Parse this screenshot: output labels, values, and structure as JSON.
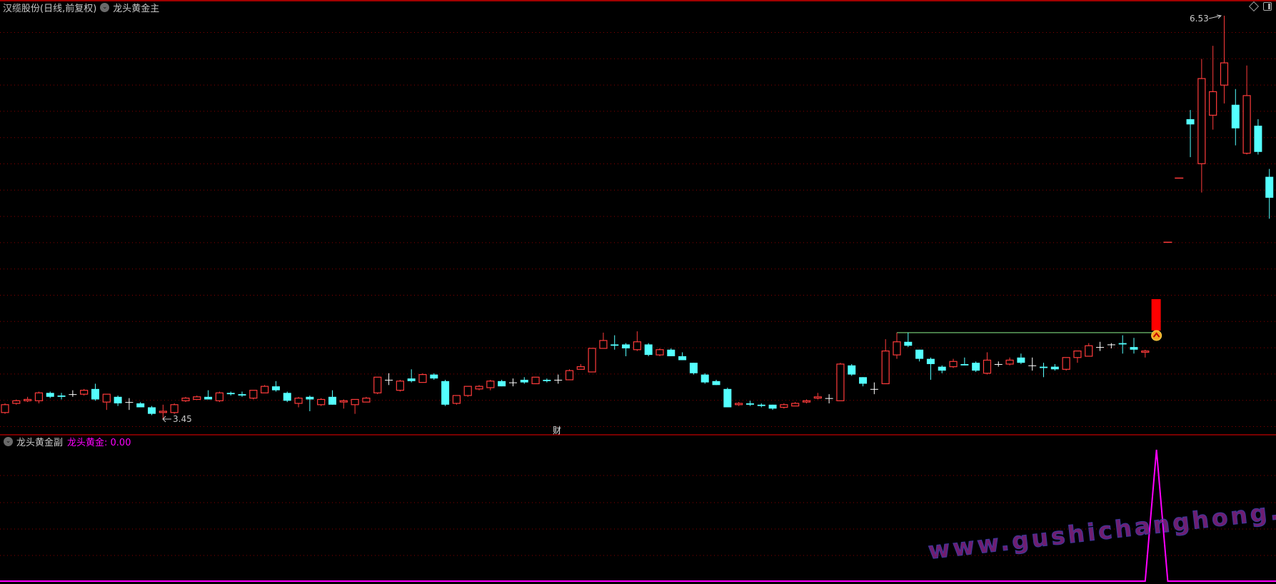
{
  "main_panel": {
    "stock_title": "汉缆股份(日线,前复权)",
    "indicator_name": "龙头黄金主",
    "high_label": "6.53",
    "low_label": "3.45",
    "event_marker": "财"
  },
  "sub_panel": {
    "indicator_name": "龙头黄金副",
    "value_label": "龙头黄金: 0.00"
  },
  "watermark": "www.gushichanghong.com",
  "icons": {
    "panel_menu": "chevron-down-circle-icon",
    "top_right": [
      "diamond-icon",
      "panel-toggle-icon"
    ],
    "signal": "up-chevron-badge-icon"
  },
  "colors": {
    "background": "#000000",
    "up": "#ff3b3b",
    "down": "#54ffff",
    "flat": "#ffffff",
    "grid": "#8b0000",
    "divider": "#a00000",
    "resistance_line": "#7cd67c",
    "signal_bar": "#ff0000",
    "indicator_line": "#ff00ff"
  },
  "chart_data": {
    "type": "candlestick",
    "price_range": [
      3.45,
      6.53
    ],
    "grid": true,
    "resistance_level": 4.11,
    "signal_index": 102,
    "candles": [
      [
        3.5,
        3.57,
        3.49,
        3.56
      ],
      [
        3.57,
        3.6,
        3.56,
        3.59
      ],
      [
        3.59,
        3.62,
        3.58,
        3.6
      ],
      [
        3.59,
        3.66,
        3.57,
        3.65
      ],
      [
        3.65,
        3.66,
        3.61,
        3.62
      ],
      [
        3.63,
        3.65,
        3.6,
        3.62
      ],
      [
        3.64,
        3.67,
        3.62,
        3.64
      ],
      [
        3.64,
        3.68,
        3.63,
        3.67
      ],
      [
        3.68,
        3.72,
        3.59,
        3.6
      ],
      [
        3.58,
        3.64,
        3.52,
        3.64
      ],
      [
        3.62,
        3.63,
        3.55,
        3.57
      ],
      [
        3.58,
        3.61,
        3.52,
        3.58
      ],
      [
        3.57,
        3.58,
        3.54,
        3.54
      ],
      [
        3.54,
        3.55,
        3.48,
        3.49
      ],
      [
        3.5,
        3.56,
        3.45,
        3.51
      ],
      [
        3.5,
        3.57,
        3.49,
        3.56
      ],
      [
        3.59,
        3.62,
        3.58,
        3.61
      ],
      [
        3.6,
        3.63,
        3.6,
        3.62
      ],
      [
        3.62,
        3.67,
        3.6,
        3.6
      ],
      [
        3.59,
        3.66,
        3.58,
        3.65
      ],
      [
        3.65,
        3.66,
        3.63,
        3.64
      ],
      [
        3.64,
        3.66,
        3.62,
        3.63
      ],
      [
        3.61,
        3.67,
        3.6,
        3.67
      ],
      [
        3.65,
        3.71,
        3.65,
        3.7
      ],
      [
        3.7,
        3.74,
        3.66,
        3.67
      ],
      [
        3.65,
        3.66,
        3.58,
        3.59
      ],
      [
        3.57,
        3.62,
        3.54,
        3.61
      ],
      [
        3.62,
        3.63,
        3.51,
        3.6
      ],
      [
        3.56,
        3.61,
        3.55,
        3.6
      ],
      [
        3.62,
        3.67,
        3.56,
        3.56
      ],
      [
        3.58,
        3.6,
        3.53,
        3.59
      ],
      [
        3.56,
        3.6,
        3.49,
        3.6
      ],
      [
        3.58,
        3.62,
        3.58,
        3.61
      ],
      [
        3.65,
        3.77,
        3.64,
        3.77
      ],
      [
        3.75,
        3.8,
        3.71,
        3.75
      ],
      [
        3.67,
        3.75,
        3.66,
        3.74
      ],
      [
        3.76,
        3.83,
        3.73,
        3.74
      ],
      [
        3.73,
        3.8,
        3.73,
        3.79
      ],
      [
        3.79,
        3.8,
        3.75,
        3.76
      ],
      [
        3.74,
        3.75,
        3.55,
        3.56
      ],
      [
        3.57,
        3.63,
        3.56,
        3.63
      ],
      [
        3.63,
        3.7,
        3.62,
        3.7
      ],
      [
        3.68,
        3.71,
        3.67,
        3.7
      ],
      [
        3.69,
        3.75,
        3.67,
        3.74
      ],
      [
        3.74,
        3.75,
        3.7,
        3.7
      ],
      [
        3.73,
        3.76,
        3.7,
        3.73
      ],
      [
        3.75,
        3.77,
        3.72,
        3.73
      ],
      [
        3.72,
        3.77,
        3.72,
        3.77
      ],
      [
        3.75,
        3.76,
        3.73,
        3.74
      ],
      [
        3.75,
        3.79,
        3.72,
        3.75
      ],
      [
        3.75,
        3.83,
        3.75,
        3.82
      ],
      [
        3.83,
        3.87,
        3.83,
        3.85
      ],
      [
        3.81,
        3.99,
        3.81,
        3.99
      ],
      [
        3.99,
        4.11,
        3.99,
        4.05
      ],
      [
        4.02,
        4.09,
        3.98,
        4.01
      ],
      [
        4.02,
        4.03,
        3.93,
        3.99
      ],
      [
        3.98,
        4.12,
        3.97,
        4.04
      ],
      [
        4.02,
        4.03,
        3.93,
        3.94
      ],
      [
        3.94,
        3.99,
        3.93,
        3.98
      ],
      [
        3.98,
        3.99,
        3.93,
        3.93
      ],
      [
        3.93,
        3.96,
        3.9,
        3.9
      ],
      [
        3.88,
        3.88,
        3.79,
        3.8
      ],
      [
        3.79,
        3.8,
        3.72,
        3.73
      ],
      [
        3.74,
        3.75,
        3.71,
        3.71
      ],
      [
        3.68,
        3.69,
        3.54,
        3.54
      ],
      [
        3.56,
        3.58,
        3.55,
        3.57
      ],
      [
        3.57,
        3.59,
        3.55,
        3.56
      ],
      [
        3.56,
        3.57,
        3.54,
        3.55
      ],
      [
        3.56,
        3.56,
        3.52,
        3.53
      ],
      [
        3.54,
        3.57,
        3.53,
        3.56
      ],
      [
        3.55,
        3.58,
        3.55,
        3.57
      ],
      [
        3.58,
        3.6,
        3.57,
        3.59
      ],
      [
        3.61,
        3.65,
        3.6,
        3.62
      ],
      [
        3.61,
        3.64,
        3.57,
        3.61
      ],
      [
        3.59,
        3.88,
        3.59,
        3.87
      ],
      [
        3.86,
        3.87,
        3.78,
        3.79
      ],
      [
        3.77,
        3.77,
        3.7,
        3.72
      ],
      [
        3.68,
        3.73,
        3.64,
        3.68
      ],
      [
        3.72,
        4.06,
        3.72,
        3.97
      ],
      [
        3.94,
        4.11,
        3.91,
        4.04
      ],
      [
        4.04,
        4.11,
        4.0,
        4.01
      ],
      [
        3.98,
        3.98,
        3.89,
        3.91
      ],
      [
        3.91,
        3.92,
        3.75,
        3.87
      ],
      [
        3.85,
        3.86,
        3.8,
        3.82
      ],
      [
        3.85,
        3.91,
        3.84,
        3.89
      ],
      [
        3.87,
        3.92,
        3.86,
        3.86
      ],
      [
        3.88,
        3.89,
        3.81,
        3.82
      ],
      [
        3.8,
        3.96,
        3.79,
        3.9
      ],
      [
        3.87,
        3.89,
        3.85,
        3.87
      ],
      [
        3.87,
        3.92,
        3.86,
        3.9
      ],
      [
        3.92,
        3.95,
        3.87,
        3.88
      ],
      [
        3.86,
        3.92,
        3.82,
        3.86
      ],
      [
        3.85,
        3.88,
        3.77,
        3.84
      ],
      [
        3.85,
        3.87,
        3.82,
        3.83
      ],
      [
        3.83,
        3.92,
        3.82,
        3.92
      ],
      [
        3.92,
        3.97,
        3.88,
        3.97
      ],
      [
        3.93,
        4.03,
        3.93,
        4.01
      ],
      [
        4.0,
        4.04,
        3.97,
        4.0
      ],
      [
        4.02,
        4.03,
        3.99,
        4.02
      ],
      [
        4.03,
        4.09,
        3.95,
        4.02
      ],
      [
        4.0,
        4.07,
        3.95,
        3.98
      ],
      [
        3.96,
        3.98,
        3.92,
        3.97
      ],
      null,
      [
        4.8,
        4.8,
        4.8,
        4.8
      ],
      [
        5.29,
        5.29,
        5.29,
        5.29
      ],
      [
        5.74,
        5.81,
        5.45,
        5.7
      ],
      [
        5.4,
        6.2,
        5.18,
        6.05
      ],
      [
        5.77,
        6.3,
        5.66,
        5.95
      ],
      [
        6.0,
        6.53,
        5.86,
        6.17
      ],
      [
        5.85,
        5.97,
        5.54,
        5.67
      ],
      [
        5.48,
        6.15,
        5.47,
        5.92
      ],
      [
        5.69,
        5.74,
        5.47,
        5.49
      ],
      [
        5.3,
        5.36,
        4.98,
        5.14
      ]
    ],
    "indicator": {
      "name": "龙头黄金",
      "peak_index": 102,
      "peak_value": 1,
      "baseline": 0
    }
  }
}
